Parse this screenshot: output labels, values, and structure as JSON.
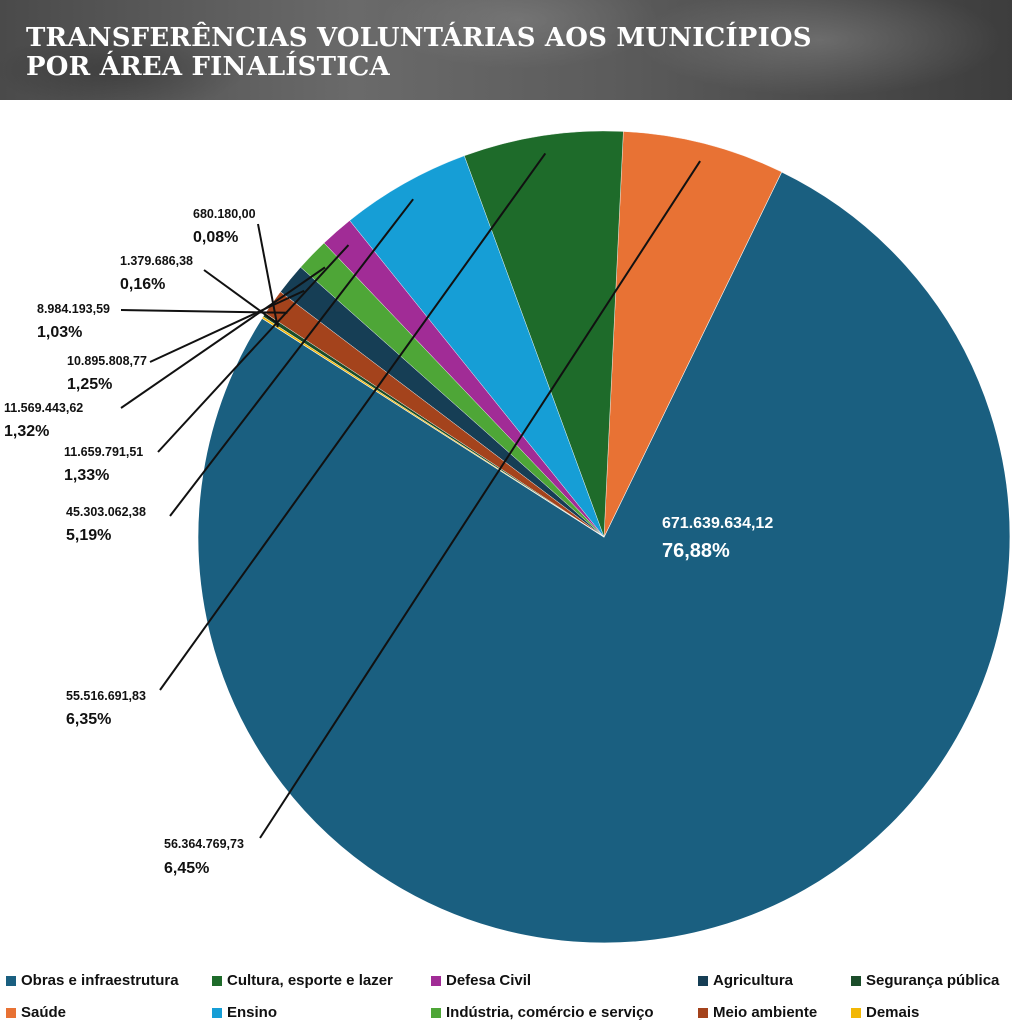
{
  "header": {
    "title_line1": "TRANSFERÊNCIAS VOLUNTÁRIAS AOS MUNICÍPIOS",
    "title_line2": "POR ÁREA FINALÍSTICA"
  },
  "chart_data": {
    "type": "pie",
    "title": "TRANSFERÊNCIAS VOLUNTÁRIAS AOS MUNICÍPIOS POR ÁREA FINALÍSTICA",
    "legend_position": "bottom",
    "slices": [
      {
        "name": "Obras e infraestrutura",
        "value": 671639634.12,
        "value_label": "671.639.634,12",
        "percent": 76.88,
        "percent_label": "76,88%",
        "color": "#1a5f80"
      },
      {
        "name": "Saúde",
        "value": 56364769.73,
        "value_label": "56.364.769,73",
        "percent": 6.45,
        "percent_label": "6,45%",
        "color": "#e87234"
      },
      {
        "name": "Cultura, esporte e lazer",
        "value": 55516691.83,
        "value_label": "55.516.691,83",
        "percent": 6.35,
        "percent_label": "6,35%",
        "color": "#1e6b2a"
      },
      {
        "name": "Ensino",
        "value": 45303062.38,
        "value_label": "45.303.062,38",
        "percent": 5.19,
        "percent_label": "5,19%",
        "color": "#169ed6"
      },
      {
        "name": "Defesa Civil",
        "value": 11659791.51,
        "value_label": "11.659.791,51",
        "percent": 1.33,
        "percent_label": "1,33%",
        "color": "#a12c96"
      },
      {
        "name": "Indústria, comércio e serviço",
        "value": 11569443.62,
        "value_label": "11.569.443,62",
        "percent": 1.32,
        "percent_label": "1,32%",
        "color": "#4ea637"
      },
      {
        "name": "Agricultura",
        "value": 10895808.77,
        "value_label": "10.895.808,77",
        "percent": 1.25,
        "percent_label": "1,25%",
        "color": "#163e55"
      },
      {
        "name": "Meio ambiente",
        "value": 8984193.59,
        "value_label": "8.984.193,59",
        "percent": 1.03,
        "percent_label": "1,03%",
        "color": "#a4431c"
      },
      {
        "name": "Segurança pública",
        "value": 1379686.38,
        "value_label": "1.379.686,38",
        "percent": 0.16,
        "percent_label": "0,16%",
        "color": "#1b4d2a"
      },
      {
        "name": "Demais",
        "value": 680180.0,
        "value_label": "680.180,00",
        "percent": 0.08,
        "percent_label": "0,08%",
        "color": "#f2b705"
      }
    ]
  },
  "legend": {
    "row1": [
      "Obras e infraestrutura",
      "Cultura, esporte e lazer",
      "Defesa Civil",
      "Agricultura",
      "Segurança pública"
    ],
    "row2": [
      "Saúde",
      "Ensino",
      "Indústria, comércio e serviço",
      "Meio ambiente",
      "Demais"
    ]
  }
}
